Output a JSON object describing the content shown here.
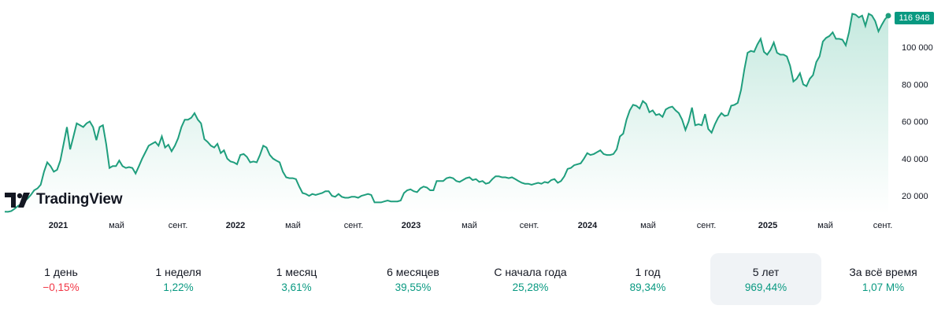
{
  "brand": {
    "name": "TradingView"
  },
  "colors": {
    "line": "#1f9e7d",
    "fill_top": "#c5e9df",
    "fill_bottom": "#ffffff",
    "positive": "#089981",
    "negative": "#f23645",
    "badge_bg": "#089981"
  },
  "last_price_label": "116 948",
  "chart_data": {
    "type": "area",
    "x_start": "2020-11",
    "x_unit": "weekly",
    "ylim": [
      12000,
      122000
    ],
    "y_ticks": [
      {
        "value": 20000,
        "label": "20 000"
      },
      {
        "value": 40000,
        "label": "40 000"
      },
      {
        "value": 60000,
        "label": "60 000"
      },
      {
        "value": 80000,
        "label": "80 000"
      },
      {
        "value": 100000,
        "label": "100 000"
      }
    ],
    "x_ticks": [
      {
        "label": "2021",
        "year": true
      },
      {
        "label": "май",
        "year": false
      },
      {
        "label": "сент.",
        "year": false
      },
      {
        "label": "2022",
        "year": true
      },
      {
        "label": "май",
        "year": false
      },
      {
        "label": "сент.",
        "year": false
      },
      {
        "label": "2023",
        "year": true
      },
      {
        "label": "май",
        "year": false
      },
      {
        "label": "сент.",
        "year": false
      },
      {
        "label": "2024",
        "year": true
      },
      {
        "label": "май",
        "year": false
      },
      {
        "label": "сент.",
        "year": false
      },
      {
        "label": "2025",
        "year": true
      },
      {
        "label": "май",
        "year": false
      },
      {
        "label": "сент.",
        "year": false
      }
    ],
    "values": [
      11500,
      11400,
      11800,
      13000,
      14500,
      15500,
      17000,
      18500,
      20500,
      23000,
      24000,
      26000,
      33000,
      38000,
      36000,
      33000,
      34000,
      39000,
      48000,
      57000,
      45000,
      52000,
      59000,
      58000,
      57000,
      59000,
      60000,
      57000,
      50000,
      57000,
      58000,
      48000,
      35000,
      36000,
      36000,
      39000,
      36000,
      35000,
      35500,
      35000,
      32000,
      36000,
      40000,
      43500,
      47000,
      48000,
      49000,
      47000,
      52000,
      46000,
      47500,
      44000,
      47000,
      51000,
      57000,
      61000,
      61000,
      62000,
      64500,
      61000,
      59000,
      50500,
      49000,
      47000,
      46000,
      48000,
      43000,
      44500,
      40000,
      38500,
      38000,
      37000,
      42000,
      42500,
      41000,
      38000,
      38500,
      38000,
      42000,
      47000,
      46000,
      42000,
      40000,
      39000,
      38000,
      33000,
      30000,
      29500,
      29500,
      29000,
      25000,
      21500,
      21000,
      20000,
      21000,
      20500,
      21000,
      21500,
      22500,
      22500,
      20000,
      19500,
      21000,
      19500,
      19000,
      19000,
      19500,
      19500,
      19000,
      20000,
      20500,
      21000,
      20500,
      16500,
      16500,
      16500,
      17000,
      17500,
      17000,
      17000,
      17000,
      17500,
      21500,
      23000,
      23500,
      22500,
      22000,
      24000,
      25000,
      24500,
      23000,
      23000,
      28000,
      28000,
      28000,
      29500,
      30000,
      29500,
      28000,
      27500,
      28500,
      29500,
      30000,
      28500,
      29000,
      27500,
      28000,
      26500,
      27000,
      29000,
      30500,
      30500,
      30000,
      30000,
      29500,
      30000,
      29000,
      28000,
      27000,
      26500,
      26500,
      26000,
      26500,
      27000,
      26500,
      27500,
      27000,
      28500,
      29000,
      27000,
      28000,
      30500,
      34500,
      35000,
      36500,
      37000,
      37500,
      40000,
      43000,
      42000,
      42500,
      43500,
      44500,
      42500,
      42000,
      42000,
      42500,
      45000,
      52000,
      53500,
      61000,
      66000,
      69000,
      68500,
      67000,
      71000,
      69500,
      65000,
      66000,
      63500,
      64000,
      62500,
      66500,
      67500,
      68000,
      66000,
      64500,
      61000,
      55500,
      60000,
      67500,
      58000,
      58500,
      58000,
      64000,
      56000,
      54000,
      58500,
      62000,
      64500,
      63000,
      63500,
      68500,
      69000,
      70000,
      77000,
      88000,
      97000,
      98000,
      97500,
      101500,
      104500,
      97500,
      96000,
      98500,
      102500,
      97000,
      96000,
      96000,
      95000,
      90000,
      81500,
      83000,
      86000,
      80000,
      79000,
      83000,
      85000,
      92000,
      95000,
      103000,
      105000,
      106000,
      108000,
      104500,
      104500,
      104000,
      101000,
      108000,
      118000,
      117500,
      116000,
      117000,
      111500,
      118000,
      117000,
      114000,
      108500,
      112000,
      115000,
      116948
    ]
  },
  "periods": [
    {
      "label": "1 день",
      "value": "−0,15%",
      "dir": "neg"
    },
    {
      "label": "1 неделя",
      "value": "1,22%",
      "dir": "pos"
    },
    {
      "label": "1 месяц",
      "value": "3,61%",
      "dir": "pos"
    },
    {
      "label": "6 месяцев",
      "value": "39,55%",
      "dir": "pos"
    },
    {
      "label": "С начала года",
      "value": "25,28%",
      "dir": "pos"
    },
    {
      "label": "1 год",
      "value": "89,34%",
      "dir": "pos"
    },
    {
      "label": "5 лет",
      "value": "969,44%",
      "dir": "pos",
      "active": true
    },
    {
      "label": "За всё время",
      "value": "1,07 M%",
      "dir": "pos"
    }
  ]
}
